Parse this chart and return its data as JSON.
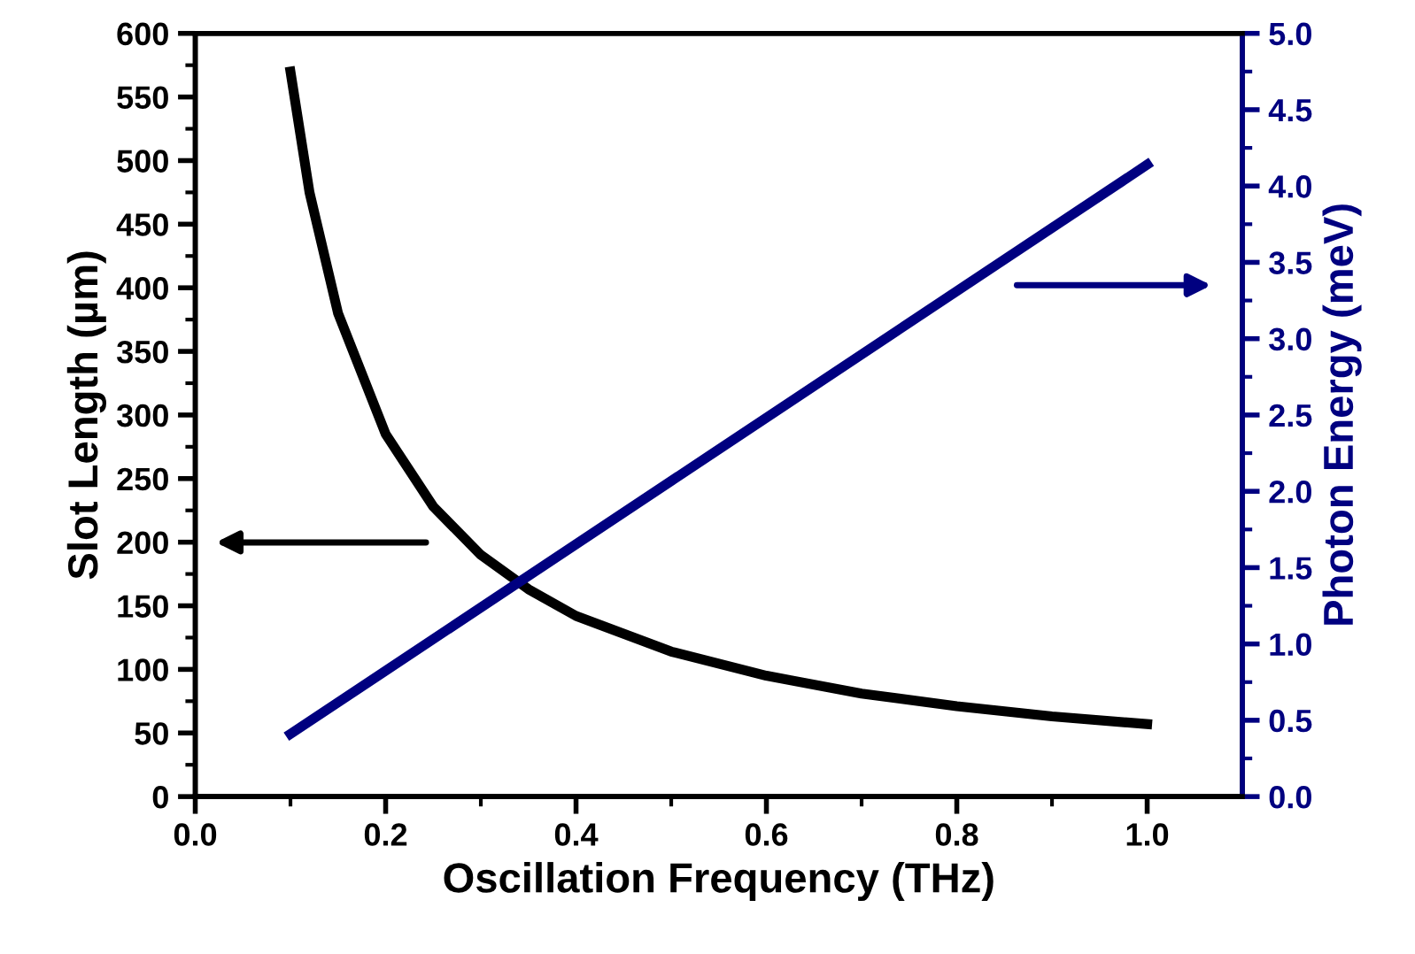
{
  "chart_data": {
    "type": "line",
    "xlabel": "Oscillation Frequency (THz)",
    "ylabel": "Slot Length (µm)",
    "y2label": "Photon Energy (meV)",
    "xlim": [
      0,
      1.1
    ],
    "xticks": [
      {
        "value": 0,
        "label": "0.0"
      },
      0.2,
      0.4,
      0.6,
      0.8,
      {
        "value": 1,
        "label": "1.0"
      }
    ],
    "ylim": [
      0,
      600
    ],
    "yticks": [
      0,
      50,
      100,
      150,
      200,
      250,
      300,
      350,
      400,
      450,
      500,
      550,
      600
    ],
    "y2lim": [
      0,
      5
    ],
    "y2ticks": [
      {
        "value": 0,
        "label": "0.0"
      },
      0.5,
      {
        "value": 1,
        "label": "1.0"
      },
      1.5,
      {
        "value": 2,
        "label": "2.0"
      },
      2.5,
      {
        "value": 3,
        "label": "3.0"
      },
      3.5,
      {
        "value": 4,
        "label": "4.0"
      },
      4.5,
      {
        "value": 5,
        "label": "5.0"
      }
    ],
    "grid": false,
    "legend": false,
    "marker": "none",
    "line_style": "solid",
    "series": [
      {
        "color": "#000000",
        "x": [
          0.1,
          0.12,
          0.15,
          0.2,
          0.25,
          0.3,
          0.35,
          0.4,
          0.5,
          0.6,
          0.7,
          0.8,
          0.9,
          1.0
        ],
        "values": [
          570,
          475,
          380,
          285,
          228,
          190,
          163,
          142,
          114,
          95,
          81,
          71,
          63,
          57
        ]
      },
      {
        "color": "#000080",
        "axis": "y2",
        "x": [
          0.1,
          1.0
        ],
        "values": [
          0.41,
          4.14
        ]
      }
    ]
  }
}
